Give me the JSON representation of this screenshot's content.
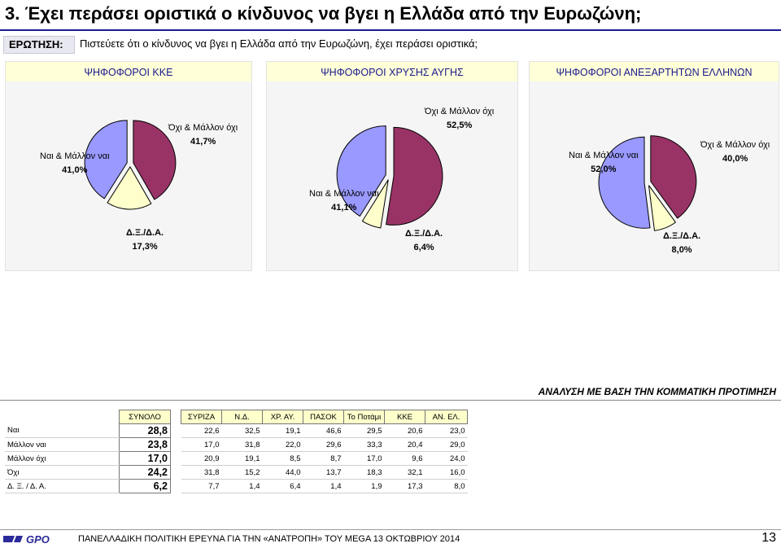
{
  "page": {
    "title": "3.  Έχει περάσει οριστικά ο κίνδυνος να βγει η Ελλάδα από την Ευρωζώνη;",
    "question_label": "ΕΡΩΤΗΣΗ:",
    "question_text": "Πιστεύετε ότι ο κίνδυνος να βγει η Ελλάδα από την Ευρωζώνη, έχει περάσει οριστικά;",
    "analysis_heading": "ΑΝΑΛΥΣΗ ΜΕ ΒΑΣΗ ΤΗΝ ΚΟΜΜΑΤΙΚΗ ΠΡΟΤΙΜΗΣΗ",
    "footer_logo_text": "GPO",
    "footer_text": "ΠΑΝΕΛΛΑΔΙΚΗ ΠΟΛΙΤΙΚΗ ΕΡΕΥΝΑ ΓΙΑ ΤΗΝ «ΑΝΑΤΡΟΠΗ» ΤΟΥ MEGA  13  ΟΚΤΩΒΡΙΟΥ  2014",
    "page_number": "13"
  },
  "colors": {
    "yes": "#9999ff",
    "no": "#993366",
    "dk": "#ffffcc",
    "outline": "#000000",
    "title_rule": "#1d1d8f"
  },
  "chart_data": [
    {
      "type": "pie",
      "title": "ΨΗΦΟΦΟΡΟΙ ΚΚΕ",
      "slices": [
        {
          "label": "Ναι & Μάλλον ναι",
          "value": 41.0,
          "value_text": "41,0%"
        },
        {
          "label": "Όχι & Μάλλον όχι",
          "value": 41.7,
          "value_text": "41,7%"
        },
        {
          "label": "Δ.Ξ./Δ.Α.",
          "value": 17.3,
          "value_text": "17,3%"
        }
      ]
    },
    {
      "type": "pie",
      "title": "ΨΗΦΟΦΟΡΟΙ ΧΡΥΣΗΣ ΑΥΓΗΣ",
      "slices": [
        {
          "label": "Ναι & Μάλλον ναι",
          "value": 41.1,
          "value_text": "41,1%"
        },
        {
          "label": "Όχι & Μάλλον όχι",
          "value": 52.5,
          "value_text": "52,5%"
        },
        {
          "label": "Δ.Ξ./Δ.Α.",
          "value": 6.4,
          "value_text": "6,4%"
        }
      ]
    },
    {
      "type": "pie",
      "title": "ΨΗΦΟΦΟΡΟΙ ΑΝΕΞΑΡΤΗΤΩΝ ΕΛΛΗΝΩΝ",
      "slices": [
        {
          "label": "Ναι & Μάλλον ναι",
          "value": 52.0,
          "value_text": "52,0%"
        },
        {
          "label": "Όχι & Μάλλον όχι",
          "value": 40.0,
          "value_text": "40,0%"
        },
        {
          "label": "Δ.Ξ./Δ.Α.",
          "value": 8.0,
          "value_text": "8,0%"
        }
      ]
    },
    {
      "type": "table",
      "columns": [
        "ΣΥΝΟΛΟ",
        "ΣΥΡΙΖΑ",
        "Ν.Δ.",
        "ΧΡ. ΑΥ.",
        "ΠΑΣΟΚ",
        "Το Ποτάμι",
        "ΚΚΕ",
        "ΑΝ. ΕΛ."
      ],
      "rows": [
        {
          "label": "Ναι",
          "total": "28,8",
          "values": [
            "22,6",
            "32,5",
            "19,1",
            "46,6",
            "29,5",
            "20,6",
            "23,0"
          ]
        },
        {
          "label": "Μάλλον ναι",
          "total": "23,8",
          "values": [
            "17,0",
            "31,8",
            "22,0",
            "29,6",
            "33,3",
            "20,4",
            "29,0"
          ]
        },
        {
          "label": "Μάλλον όχι",
          "total": "17,0",
          "values": [
            "20,9",
            "19,1",
            "8,5",
            "8,7",
            "17,0",
            "9,6",
            "24,0"
          ]
        },
        {
          "label": "Όχι",
          "total": "24,2",
          "values": [
            "31,8",
            "15,2",
            "44,0",
            "13,7",
            "18,3",
            "32,1",
            "16,0"
          ]
        },
        {
          "label": "Δ. Ξ. / Δ. Α.",
          "total": "6,2",
          "values": [
            "7,7",
            "1,4",
            "6,4",
            "1,4",
            "1,9",
            "17,3",
            "8,0"
          ]
        }
      ]
    }
  ]
}
